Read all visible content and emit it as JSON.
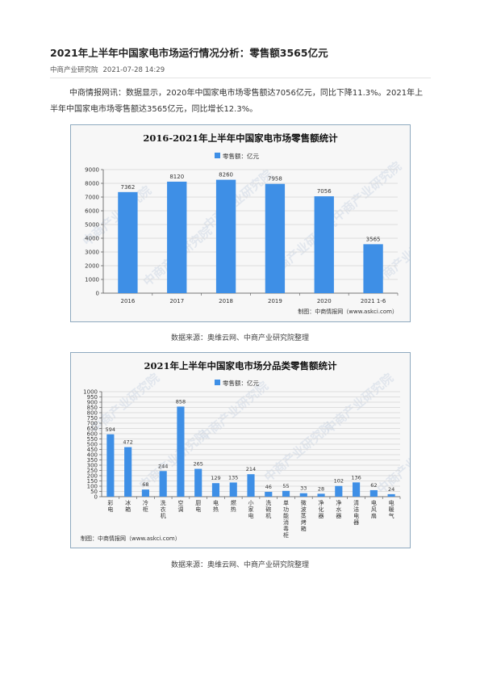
{
  "article": {
    "title": "2021年上半年中国家电市场运行情况分析：零售额3565亿元",
    "source_name": "中商产业研究院",
    "date": "2021-07-28 14:29",
    "paragraph": "中商情报网讯：数据显示，2020年中国家电市场零售额达7056亿元，同比下降11.3%。2021年上半年中国家电市场零售额达3565亿元，同比增长12.3%。"
  },
  "watermark": "中商产业研究院",
  "chart_data": [
    {
      "type": "bar",
      "title": "2016-2021年上半年中国家电市场零售额统计",
      "legend": "零售额：亿元",
      "categories": [
        "2016",
        "2017",
        "2018",
        "2019",
        "2020",
        "2021 1-6"
      ],
      "values": [
        7362,
        8120,
        8260,
        7958,
        7056,
        3565
      ],
      "ylim": [
        0,
        9000
      ],
      "yticks": [
        0,
        1000,
        2000,
        3000,
        4000,
        5000,
        6000,
        7000,
        8000,
        9000
      ],
      "credit": "制图：中商情报网（www.askci.com）",
      "color": "#3e8fe6"
    },
    {
      "type": "bar",
      "title": "2021年上半年中国家电市场分品类零售额统计",
      "legend": "零售额：亿元",
      "categories": [
        "彩电",
        "冰箱",
        "冷柜",
        "洗衣机",
        "空调",
        "厨电",
        "电热",
        "燃热",
        "小家电",
        "洗碗机",
        "单功能消毒柜",
        "微波蒸烤箱",
        "净化器",
        "净水器",
        "清洁电器",
        "电风扇",
        "电暖气"
      ],
      "values": [
        594,
        472,
        68,
        244,
        858,
        265,
        129,
        135,
        214,
        46,
        55,
        33,
        28,
        102,
        136,
        62,
        24
      ],
      "ylim": [
        0,
        1000
      ],
      "yticks": [
        0,
        50,
        100,
        150,
        200,
        250,
        300,
        350,
        400,
        450,
        500,
        550,
        600,
        650,
        700,
        750,
        800,
        850,
        900,
        950,
        1000
      ],
      "credit": "制图：中商情报网（www.askci.com）",
      "color": "#3e8fe6"
    }
  ],
  "captions": {
    "chart1_source": "数据来源：奥维云网、中商产业研究院整理",
    "chart2_source": "数据来源：奥维云网、中商产业研究院整理"
  }
}
